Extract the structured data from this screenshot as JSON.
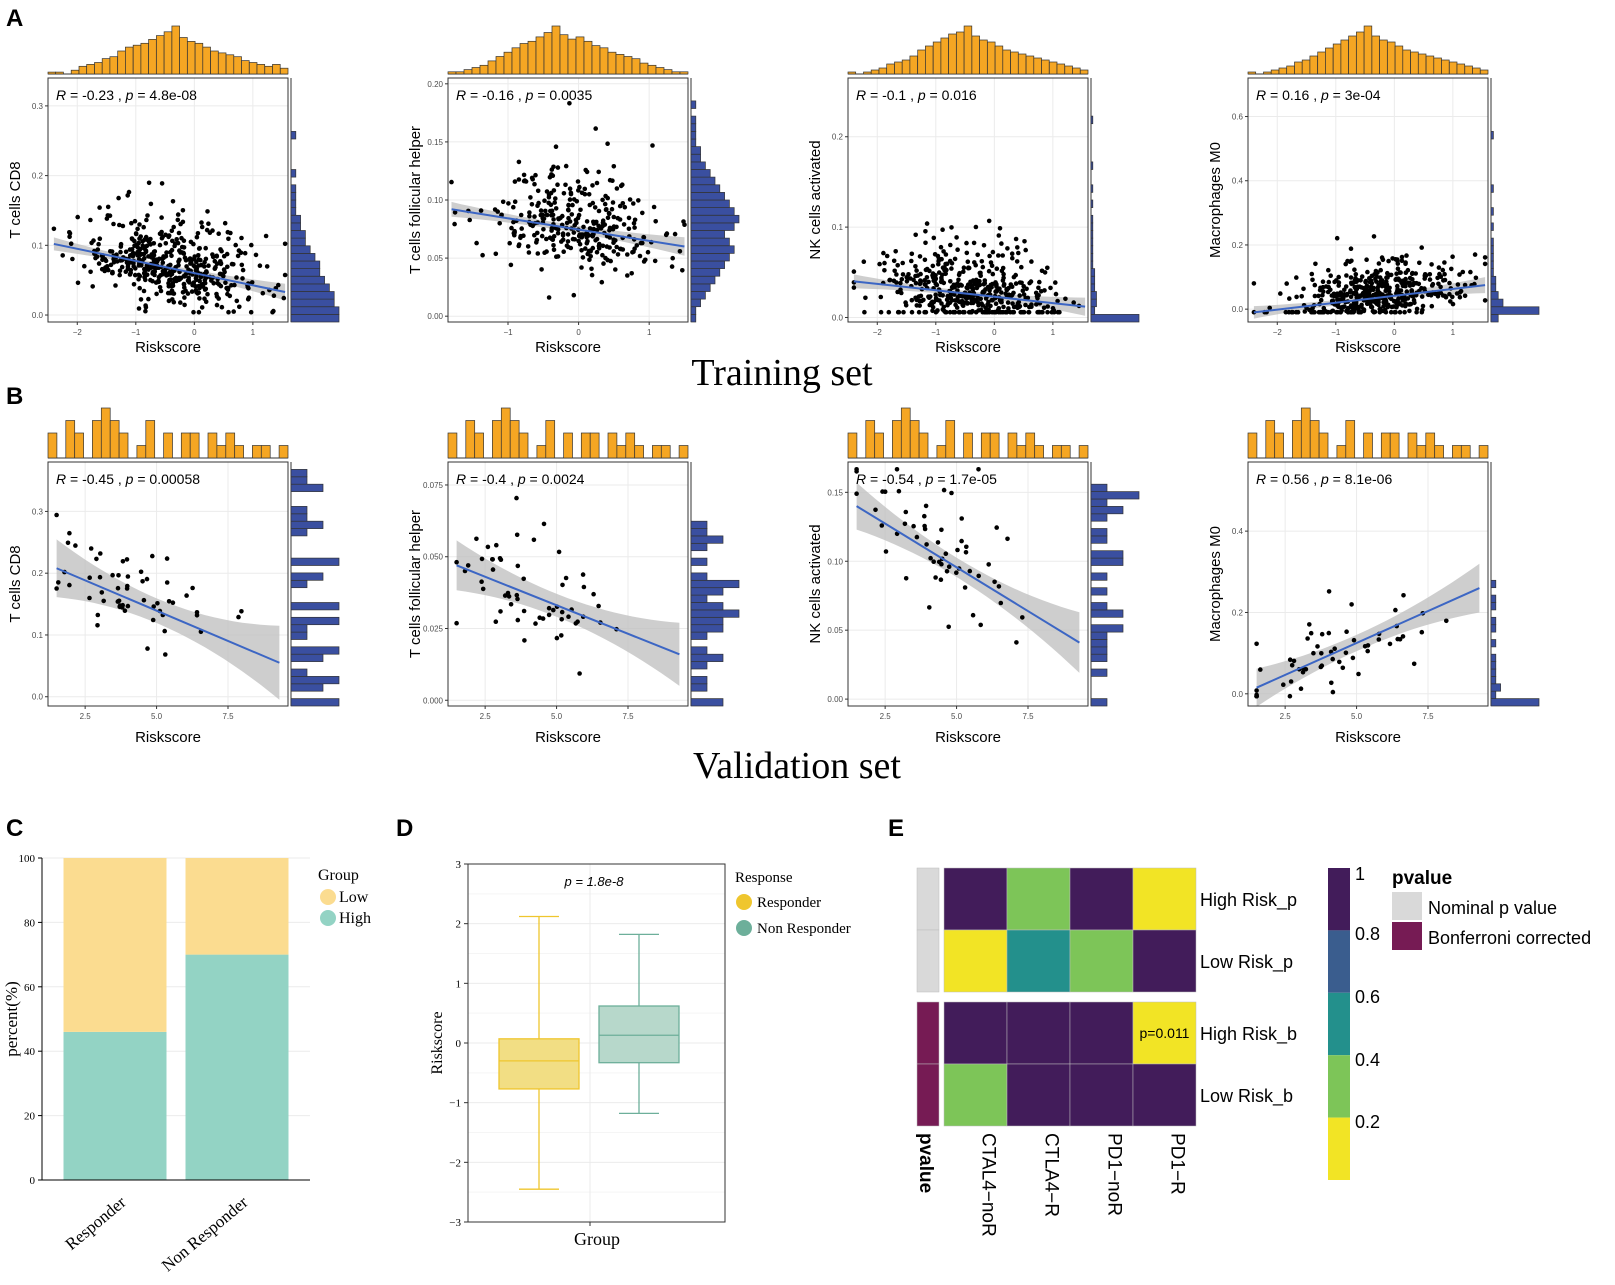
{
  "figure": {
    "panel_labels": [
      "A",
      "B",
      "C",
      "D",
      "E"
    ],
    "training_caption": "Training set",
    "validation_caption": "Validation set"
  },
  "colors": {
    "hist_top": "#F5A623",
    "hist_side": "#3A4FA0",
    "reg_line": "#3C66C4",
    "band": "#BDBDBD",
    "low": "#FBDC90",
    "high": "#93D3C4",
    "responder": "#EFC62E",
    "non_responder": "#6DAF9A",
    "dark": "#421C5A",
    "teal": "#23908C",
    "green": "#7DC558",
    "yellow": "#F2E425",
    "nominal": "#D9D9D9",
    "bonferroni": "#761B54"
  },
  "chart_data": [
    {
      "id": "A1",
      "type": "scatter",
      "set": "Training set",
      "xlabel": "Riskscore",
      "ylabel": "T cells CD8",
      "xlim": [
        -2.5,
        1.6
      ],
      "ylim": [
        -0.01,
        0.34
      ],
      "xticks": [
        -2,
        -1,
        0,
        1
      ],
      "yticks": [
        0.0,
        0.1,
        0.2,
        0.3
      ],
      "xtick_labels": [
        "−2",
        "−1",
        "0",
        "1"
      ],
      "ytick_labels": [
        "0.0",
        "0.1",
        "0.2",
        "0.3"
      ],
      "r_label": "R",
      "stat_text": " = -0.23 , ",
      "p_label": "p",
      "p_text": " = 4.8e-08",
      "regression": {
        "x0": -2.4,
        "x1": 1.55,
        "y0": 0.102,
        "y1": 0.033,
        "band_edge": 0.012,
        "band_mid": 0.004
      },
      "n_points": 480,
      "seed": 11,
      "x_mean": -0.4,
      "x_sd": 0.75,
      "y_base": 0.06,
      "y_sd": 0.045,
      "top_hist": [
        1,
        1,
        0,
        2,
        4,
        5,
        6,
        8,
        9,
        12,
        14,
        15,
        16,
        18,
        20,
        22,
        25,
        19,
        17,
        16,
        14,
        12,
        11,
        10,
        9,
        7,
        6,
        5,
        4,
        5,
        3
      ],
      "side_hist": [
        10,
        10,
        9,
        9,
        8,
        7,
        6,
        6,
        5,
        4,
        3,
        3,
        2,
        2,
        1,
        1,
        1,
        1,
        0,
        1,
        0,
        0,
        0,
        0,
        1,
        0,
        0,
        0,
        0,
        0,
        0,
        0
      ]
    },
    {
      "id": "A2",
      "type": "scatter",
      "set": "Training set",
      "xlabel": "Riskscore",
      "ylabel": "T cells follicular helper",
      "xlim": [
        -1.85,
        1.55
      ],
      "ylim": [
        -0.005,
        0.205
      ],
      "xticks": [
        -1,
        0,
        1
      ],
      "yticks": [
        0.0,
        0.05,
        0.1,
        0.15,
        0.2
      ],
      "xtick_labels": [
        "−1",
        "0",
        "1"
      ],
      "ytick_labels": [
        "0.00",
        "0.05",
        "0.10",
        "0.15",
        "0.20"
      ],
      "r_label": "R",
      "stat_text": " = -0.16 , ",
      "p_label": "p",
      "p_text": " = 0.0035",
      "regression": {
        "x0": -1.8,
        "x1": 1.5,
        "y0": 0.092,
        "y1": 0.06,
        "band_edge": 0.008,
        "band_mid": 0.003
      },
      "n_points": 330,
      "seed": 23,
      "x_mean": -0.1,
      "x_sd": 0.65,
      "y_base": 0.075,
      "y_sd": 0.035,
      "top_hist": [
        1,
        1,
        2,
        3,
        4,
        6,
        8,
        10,
        12,
        14,
        15,
        17,
        19,
        22,
        18,
        16,
        17,
        15,
        13,
        12,
        10,
        9,
        8,
        7,
        5,
        4,
        3,
        2,
        1,
        1
      ],
      "side_hist": [
        1,
        1,
        2,
        3,
        4,
        5,
        6,
        7,
        8,
        9,
        8,
        7,
        9,
        10,
        9,
        8,
        7,
        6,
        5,
        4,
        3,
        2,
        2,
        1,
        1,
        1,
        1,
        0,
        1,
        0,
        0,
        0
      ]
    },
    {
      "id": "A3",
      "type": "scatter",
      "set": "Training set",
      "xlabel": "Riskscore",
      "ylabel": "NK cells activated",
      "xlim": [
        -2.5,
        1.6
      ],
      "ylim": [
        -0.005,
        0.265
      ],
      "xticks": [
        -2,
        -1,
        0,
        1
      ],
      "yticks": [
        0.0,
        0.1,
        0.2
      ],
      "xtick_labels": [
        "−2",
        "−1",
        "0",
        "1"
      ],
      "ytick_labels": [
        "0.0",
        "0.1",
        "0.2"
      ],
      "r_label": "R",
      "stat_text": " = -0.1 , ",
      "p_label": "p",
      "p_text": " = 0.016",
      "regression": {
        "x0": -2.4,
        "x1": 1.55,
        "y0": 0.04,
        "y1": 0.012,
        "band_edge": 0.01,
        "band_mid": 0.003
      },
      "n_points": 470,
      "seed": 37,
      "x_mean": -0.35,
      "x_sd": 0.75,
      "y_base": 0.02,
      "y_sd": 0.035,
      "top_hist": [
        1,
        0,
        1,
        2,
        3,
        5,
        6,
        7,
        9,
        12,
        14,
        16,
        18,
        20,
        21,
        24,
        19,
        17,
        16,
        14,
        12,
        11,
        10,
        9,
        8,
        7,
        6,
        5,
        4,
        3,
        2
      ],
      "side_hist": [
        26,
        2,
        3,
        3,
        2,
        2,
        2,
        1,
        1,
        1,
        1,
        1,
        1,
        1,
        0,
        1,
        0,
        1,
        0,
        0,
        1,
        0,
        0,
        0,
        0,
        0,
        1,
        0,
        0,
        0,
        0,
        0
      ]
    },
    {
      "id": "A4",
      "type": "scatter",
      "set": "Training set",
      "xlabel": "Riskscore",
      "ylabel": "Macrophages M0",
      "xlim": [
        -2.5,
        1.6
      ],
      "ylim": [
        -0.04,
        0.72
      ],
      "xticks": [
        -2,
        -1,
        0,
        1
      ],
      "yticks": [
        0.0,
        0.2,
        0.4,
        0.6
      ],
      "xtick_labels": [
        "−2",
        "−1",
        "0",
        "1"
      ],
      "ytick_labels": [
        "0.0",
        "0.2",
        "0.4",
        "0.6"
      ],
      "r_label": "R",
      "stat_text": " = 0.16 , ",
      "p_label": "p",
      "p_text": " = 3e-04",
      "regression": {
        "x0": -2.4,
        "x1": 1.55,
        "y0": -0.01,
        "y1": 0.075,
        "band_edge": 0.025,
        "band_mid": 0.008
      },
      "n_points": 470,
      "seed": 53,
      "x_mean": -0.3,
      "x_sd": 0.75,
      "y_base": 0.04,
      "y_sd": 0.08,
      "top_hist": [
        1,
        0,
        1,
        2,
        3,
        4,
        6,
        7,
        9,
        11,
        13,
        15,
        17,
        19,
        21,
        24,
        19,
        17,
        16,
        14,
        12,
        11,
        10,
        9,
        8,
        7,
        6,
        5,
        4,
        3,
        2
      ],
      "side_hist": [
        3,
        20,
        5,
        3,
        2,
        2,
        1,
        1,
        1,
        1,
        1,
        0,
        1,
        0,
        1,
        0,
        0,
        1,
        0,
        0,
        0,
        0,
        0,
        0,
        1,
        0,
        0,
        0,
        0,
        0,
        0,
        0
      ]
    },
    {
      "id": "B1",
      "type": "scatter",
      "set": "Validation set",
      "xlabel": "Riskscore",
      "ylabel": "T cells CD8",
      "xlim": [
        1.2,
        9.6
      ],
      "ylim": [
        -0.015,
        0.38
      ],
      "xticks": [
        2.5,
        5.0,
        7.5
      ],
      "yticks": [
        0.0,
        0.1,
        0.2,
        0.3
      ],
      "xtick_labels": [
        "2.5",
        "5.0",
        "7.5"
      ],
      "ytick_labels": [
        "0.0",
        "0.1",
        "0.2",
        "0.3"
      ],
      "r_label": "R",
      "stat_text": " = -0.45 , ",
      "p_label": "p",
      "p_text": " = 0.00058",
      "regression": {
        "x0": 1.5,
        "x1": 9.3,
        "y0": 0.208,
        "y1": 0.055,
        "band_edge": 0.06,
        "band_mid": 0.02
      },
      "n_points": 58,
      "seed": 71,
      "x_mean": 4.2,
      "x_sd": 1.6,
      "y_base": 0.13,
      "y_sd": 0.07,
      "top_hist": [
        2,
        0,
        3,
        2,
        0,
        3,
        4,
        3,
        2,
        0,
        1,
        3,
        0,
        2,
        0,
        2,
        2,
        0,
        2,
        1,
        2,
        1,
        0,
        1,
        1,
        0,
        1
      ],
      "side_hist": [
        3,
        0,
        2,
        3,
        1,
        0,
        2,
        3,
        0,
        1,
        1,
        3,
        0,
        3,
        0,
        0,
        1,
        2,
        0,
        3,
        0,
        0,
        0,
        1,
        2,
        1,
        1,
        0,
        0,
        2,
        1,
        1,
        0
      ]
    },
    {
      "id": "B2",
      "type": "scatter",
      "set": "Validation set",
      "xlabel": "Riskscore",
      "ylabel": "T cells follicular helper",
      "xlim": [
        1.2,
        9.6
      ],
      "ylim": [
        -0.002,
        0.083
      ],
      "xticks": [
        2.5,
        5.0,
        7.5
      ],
      "yticks": [
        0.0,
        0.025,
        0.05,
        0.075
      ],
      "xtick_labels": [
        "2.5",
        "5.0",
        "7.5"
      ],
      "ytick_labels": [
        "0.000",
        "0.025",
        "0.050",
        "0.075"
      ],
      "r_label": "R",
      "stat_text": " = -0.4 , ",
      "p_label": "p",
      "p_text": " = 0.0024",
      "regression": {
        "x0": 1.5,
        "x1": 9.3,
        "y0": 0.047,
        "y1": 0.016,
        "band_edge": 0.011,
        "band_mid": 0.004
      },
      "n_points": 58,
      "seed": 89,
      "x_mean": 4.3,
      "x_sd": 1.6,
      "y_base": 0.032,
      "y_sd": 0.016,
      "top_hist": [
        2,
        0,
        3,
        2,
        0,
        3,
        4,
        3,
        2,
        0,
        1,
        3,
        0,
        2,
        0,
        2,
        2,
        0,
        2,
        1,
        2,
        1,
        0,
        1,
        1,
        0,
        1
      ],
      "side_hist": [
        2,
        0,
        1,
        1,
        0,
        1,
        2,
        1,
        0,
        1,
        2,
        2,
        3,
        2,
        1,
        2,
        3,
        1,
        0,
        1,
        0,
        1,
        2,
        1,
        1,
        0,
        0,
        0,
        0,
        0,
        0,
        0,
        0
      ]
    },
    {
      "id": "B3",
      "type": "scatter",
      "set": "Validation set",
      "xlabel": "Riskscore",
      "ylabel": "NK cells activated",
      "xlim": [
        1.2,
        9.6
      ],
      "ylim": [
        -0.005,
        0.172
      ],
      "xticks": [
        2.5,
        5.0,
        7.5
      ],
      "yticks": [
        0.0,
        0.05,
        0.1,
        0.15
      ],
      "xtick_labels": [
        "2.5",
        "5.0",
        "7.5"
      ],
      "ytick_labels": [
        "0.00",
        "0.05",
        "0.10",
        "0.15"
      ],
      "r_label": "R",
      "stat_text": " = -0.54 , ",
      "p_label": "p",
      "p_text": " = 1.7e-05",
      "regression": {
        "x0": 1.5,
        "x1": 9.3,
        "y0": 0.14,
        "y1": 0.041,
        "band_edge": 0.022,
        "band_mid": 0.007
      },
      "n_points": 58,
      "seed": 97,
      "x_mean": 4.2,
      "x_sd": 1.6,
      "y_base": 0.095,
      "y_sd": 0.04,
      "top_hist": [
        2,
        0,
        3,
        2,
        0,
        3,
        4,
        3,
        2,
        0,
        1,
        3,
        0,
        2,
        0,
        2,
        2,
        0,
        2,
        1,
        2,
        1,
        0,
        1,
        1,
        0,
        1
      ],
      "side_hist": [
        1,
        0,
        0,
        0,
        1,
        0,
        1,
        1,
        1,
        1,
        2,
        0,
        2,
        1,
        0,
        1,
        0,
        1,
        0,
        2,
        2,
        0,
        1,
        1,
        0,
        1,
        2,
        1,
        3,
        1,
        0,
        0,
        0
      ]
    },
    {
      "id": "B4",
      "type": "scatter",
      "set": "Validation set",
      "xlabel": "Riskscore",
      "ylabel": "Macrophages M0",
      "xlim": [
        1.2,
        9.6
      ],
      "ylim": [
        -0.03,
        0.57
      ],
      "xticks": [
        2.5,
        5.0,
        7.5
      ],
      "yticks": [
        0.0,
        0.2,
        0.4
      ],
      "xtick_labels": [
        "2.5",
        "5.0",
        "7.5"
      ],
      "ytick_labels": [
        "0.0",
        "0.2",
        "0.4"
      ],
      "r_label": "R",
      "stat_text": " = 0.56 , ",
      "p_label": "p",
      "p_text": " = 8.1e-06",
      "regression": {
        "x0": 1.5,
        "x1": 9.3,
        "y0": 0.015,
        "y1": 0.26,
        "band_edge": 0.06,
        "band_mid": 0.02
      },
      "n_points": 58,
      "seed": 113,
      "x_mean": 4.3,
      "x_sd": 1.7,
      "y_base": 0.1,
      "y_sd": 0.08,
      "top_hist": [
        2,
        0,
        3,
        2,
        0,
        3,
        4,
        3,
        2,
        0,
        1,
        3,
        0,
        2,
        0,
        2,
        2,
        0,
        2,
        1,
        2,
        1,
        0,
        1,
        1,
        0,
        1
      ],
      "side_hist": [
        10,
        1,
        2,
        1,
        1,
        1,
        1,
        0,
        1,
        0,
        1,
        1,
        0,
        1,
        1,
        0,
        1,
        0,
        0,
        0,
        0,
        0,
        0,
        0,
        0,
        0,
        0,
        0,
        0,
        0,
        0,
        0,
        0
      ]
    },
    {
      "id": "C",
      "type": "bar",
      "stacked": true,
      "categories": [
        "Responder",
        "Non Responder"
      ],
      "series": [
        {
          "name": "High",
          "values": [
            46,
            70
          ]
        },
        {
          "name": "Low",
          "values": [
            54,
            30
          ]
        }
      ],
      "ylabel": "percent(%)",
      "ylim": [
        0,
        100
      ],
      "yticks": [
        0,
        20,
        40,
        60,
        80,
        100
      ],
      "ytick_labels": [
        "0",
        "20",
        "40",
        "60",
        "80",
        "100"
      ],
      "legend_title": "Group",
      "legend": [
        "Low",
        "High"
      ]
    },
    {
      "id": "D",
      "type": "box",
      "categories": [
        "Responder",
        "Non Responder"
      ],
      "boxes": [
        {
          "name": "Responder",
          "min": -2.45,
          "q1": -0.77,
          "median": -0.3,
          "q3": 0.07,
          "max": 2.12
        },
        {
          "name": "Non Responder",
          "min": -1.18,
          "q1": -0.33,
          "median": 0.13,
          "q3": 0.62,
          "max": 1.82
        }
      ],
      "xlabel": "Group",
      "ylabel": "Riskscore",
      "ylim": [
        -3,
        3
      ],
      "yticks": [
        -3,
        -2,
        -1,
        0,
        1,
        2,
        3
      ],
      "ytick_labels": [
        "−3",
        "−2",
        "−1",
        "0",
        "1",
        "2",
        "3"
      ],
      "annotation": "p = 1.8e-8",
      "legend_title": "Response",
      "legend": [
        "Responder",
        "Non Responder"
      ]
    },
    {
      "id": "E",
      "type": "heatmap",
      "rows": [
        "High Risk_p",
        "Low Risk_p",
        "High Risk_b",
        "Low Risk_b"
      ],
      "cols": [
        "CTAL4−noR",
        "CTLA4−R",
        "PD1−noR",
        "PD1−R"
      ],
      "values": [
        [
          1.0,
          0.35,
          1.0,
          0.05
        ],
        [
          0.05,
          0.5,
          0.35,
          1.0
        ],
        [
          1.0,
          1.0,
          1.0,
          0.011
        ],
        [
          0.35,
          1.0,
          1.0,
          1.0
        ]
      ],
      "cell_labels": [
        [
          "",
          "",
          "",
          ""
        ],
        [
          "",
          "",
          "",
          ""
        ],
        [
          "",
          "",
          "",
          "p=0.011"
        ],
        [
          "",
          "",
          "",
          ""
        ]
      ],
      "annotation_col": [
        "Nominal p value",
        "Nominal p value",
        "Bonferroni corrected",
        "Bonferroni corrected"
      ],
      "annotation_label": "pvalue",
      "colorbar_ticks": [
        1,
        0.8,
        0.6,
        0.4,
        0.2
      ],
      "colorbar_tick_labels": [
        "1",
        "0.8",
        "0.6",
        "0.4",
        "0.2"
      ],
      "legend_title": "pvalue",
      "legend": [
        "Nominal p value",
        "Bonferroni corrected"
      ]
    }
  ]
}
